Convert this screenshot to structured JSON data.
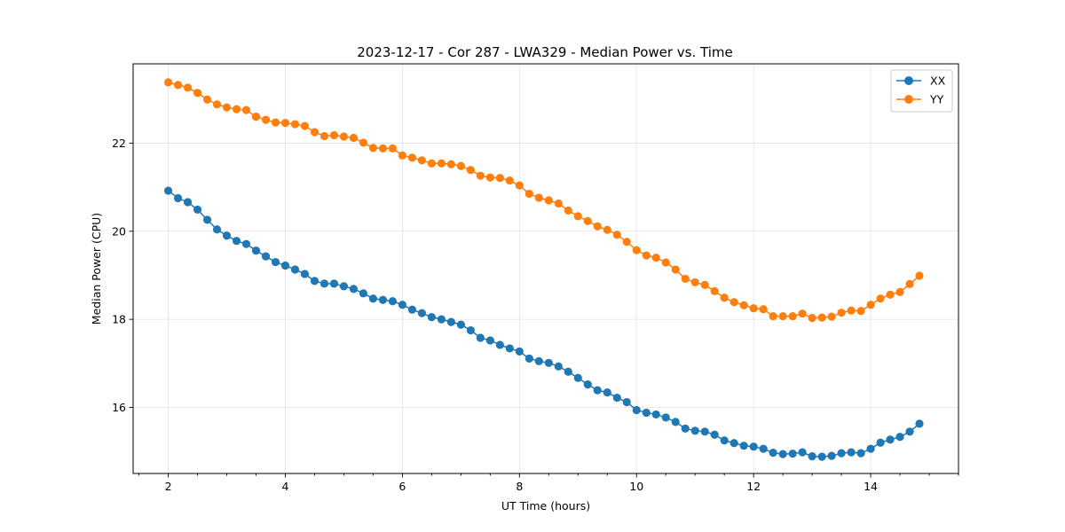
{
  "chart_data": {
    "type": "line",
    "title": "2023-12-17 - Cor 287 - LWA329 - Median Power vs. Time",
    "xlabel": "UT Time (hours)",
    "ylabel": "Median Power (CPU)",
    "xlim": [
      1.4,
      15.5
    ],
    "ylim": [
      14.5,
      23.8
    ],
    "xticks": [
      2,
      4,
      6,
      8,
      10,
      12,
      14
    ],
    "yticks": [
      16,
      18,
      20,
      22
    ],
    "x_minor_step": 0.5,
    "grid": true,
    "legend_position": "top-right",
    "x": [
      2.0,
      2.167,
      2.333,
      2.5,
      2.667,
      2.833,
      3.0,
      3.167,
      3.333,
      3.5,
      3.667,
      3.833,
      4.0,
      4.167,
      4.333,
      4.5,
      4.667,
      4.833,
      5.0,
      5.167,
      5.333,
      5.5,
      5.667,
      5.833,
      6.0,
      6.167,
      6.333,
      6.5,
      6.667,
      6.833,
      7.0,
      7.167,
      7.333,
      7.5,
      7.667,
      7.833,
      8.0,
      8.167,
      8.333,
      8.5,
      8.667,
      8.833,
      9.0,
      9.167,
      9.333,
      9.5,
      9.667,
      9.833,
      10.0,
      10.167,
      10.333,
      10.5,
      10.667,
      10.833,
      11.0,
      11.167,
      11.333,
      11.5,
      11.667,
      11.833,
      12.0,
      12.167,
      12.333,
      12.5,
      12.667,
      12.833,
      13.0,
      13.167,
      13.333,
      13.5,
      13.667,
      13.833,
      14.0,
      14.167,
      14.333,
      14.5,
      14.667,
      14.833
    ],
    "series": [
      {
        "name": "XX",
        "color": "#1f77b4",
        "marker": "circle",
        "values": [
          20.92,
          20.75,
          20.66,
          20.49,
          20.26,
          20.04,
          19.9,
          19.78,
          19.71,
          19.56,
          19.43,
          19.3,
          19.22,
          19.13,
          19.03,
          18.87,
          18.81,
          18.81,
          18.75,
          18.69,
          18.59,
          18.47,
          18.44,
          18.41,
          18.33,
          18.22,
          18.14,
          18.05,
          18.0,
          17.94,
          17.88,
          17.75,
          17.58,
          17.52,
          17.42,
          17.34,
          17.27,
          17.11,
          17.05,
          17.01,
          16.93,
          16.81,
          16.67,
          16.52,
          16.39,
          16.34,
          16.22,
          16.12,
          15.94,
          15.88,
          15.84,
          15.77,
          15.67,
          15.52,
          15.47,
          15.45,
          15.38,
          15.25,
          15.19,
          15.13,
          15.11,
          15.06,
          14.97,
          14.94,
          14.95,
          14.98,
          14.89,
          14.88,
          14.9,
          14.96,
          14.98,
          14.96,
          15.06,
          15.2,
          15.27,
          15.33,
          15.45,
          15.63
        ]
      },
      {
        "name": "YY",
        "color": "#ff7f0e",
        "marker": "circle",
        "values": [
          23.38,
          23.32,
          23.26,
          23.14,
          22.99,
          22.88,
          22.81,
          22.77,
          22.75,
          22.6,
          22.53,
          22.47,
          22.46,
          22.43,
          22.39,
          22.25,
          22.16,
          22.18,
          22.15,
          22.12,
          22.01,
          21.89,
          21.88,
          21.88,
          21.72,
          21.67,
          21.61,
          21.54,
          21.54,
          21.52,
          21.48,
          21.39,
          21.26,
          21.22,
          21.21,
          21.15,
          21.04,
          20.85,
          20.76,
          20.7,
          20.63,
          20.47,
          20.34,
          20.23,
          20.11,
          20.03,
          19.92,
          19.76,
          19.57,
          19.45,
          19.4,
          19.29,
          19.13,
          18.92,
          18.84,
          18.78,
          18.64,
          18.49,
          18.39,
          18.32,
          18.25,
          18.23,
          18.07,
          18.07,
          18.07,
          18.13,
          18.03,
          18.04,
          18.06,
          18.15,
          18.2,
          18.19,
          18.33,
          18.47,
          18.56,
          18.62,
          18.8,
          18.99
        ]
      }
    ]
  }
}
